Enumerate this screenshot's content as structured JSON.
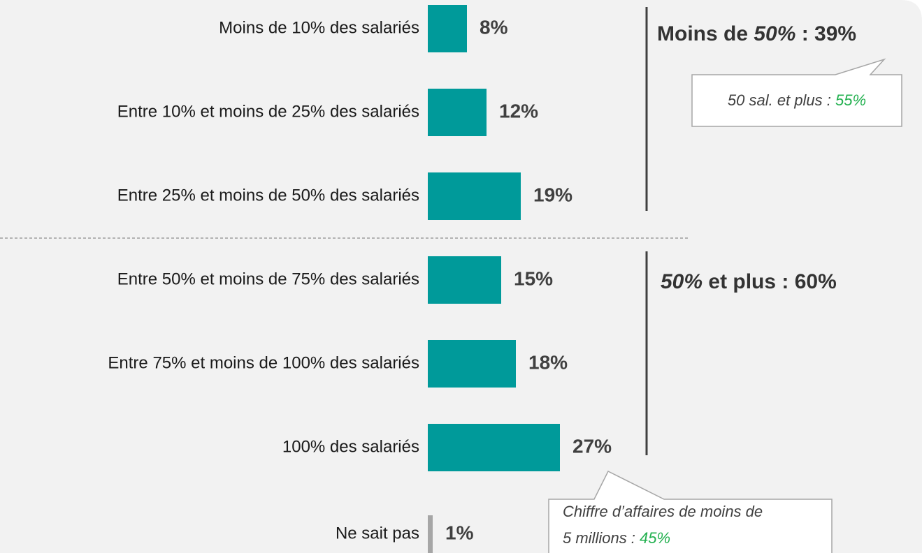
{
  "chart_data": {
    "type": "bar",
    "categories": [
      "Moins de 10% des salariés",
      "Entre 10% et moins de 25% des salariés",
      "Entre 25% et moins de 50% des salariés",
      "Entre 50% et moins de 75% des salariés",
      "Entre 75% et moins de 100% des salariés",
      "100% des salariés",
      "Ne sait pas"
    ],
    "values": [
      8,
      12,
      19,
      15,
      18,
      27,
      1
    ],
    "value_labels": [
      "8%",
      "12%",
      "19%",
      "15%",
      "18%",
      "27%",
      "1%"
    ],
    "colors": [
      "#009a9a",
      "#009a9a",
      "#009a9a",
      "#009a9a",
      "#009a9a",
      "#009a9a",
      "#a6a6a6"
    ],
    "groups": [
      {
        "parts": [
          "Moins de ",
          "50%",
          " : 39%"
        ]
      },
      {
        "parts": [
          "50%",
          " et plus : 60%"
        ]
      }
    ],
    "callouts": [
      {
        "text": "50 sal. et plus : ",
        "highlight": "55%"
      },
      {
        "lines": [
          "Chiffre d’affaires de moins de",
          "5 millions : "
        ],
        "highlight": "45%"
      }
    ]
  }
}
